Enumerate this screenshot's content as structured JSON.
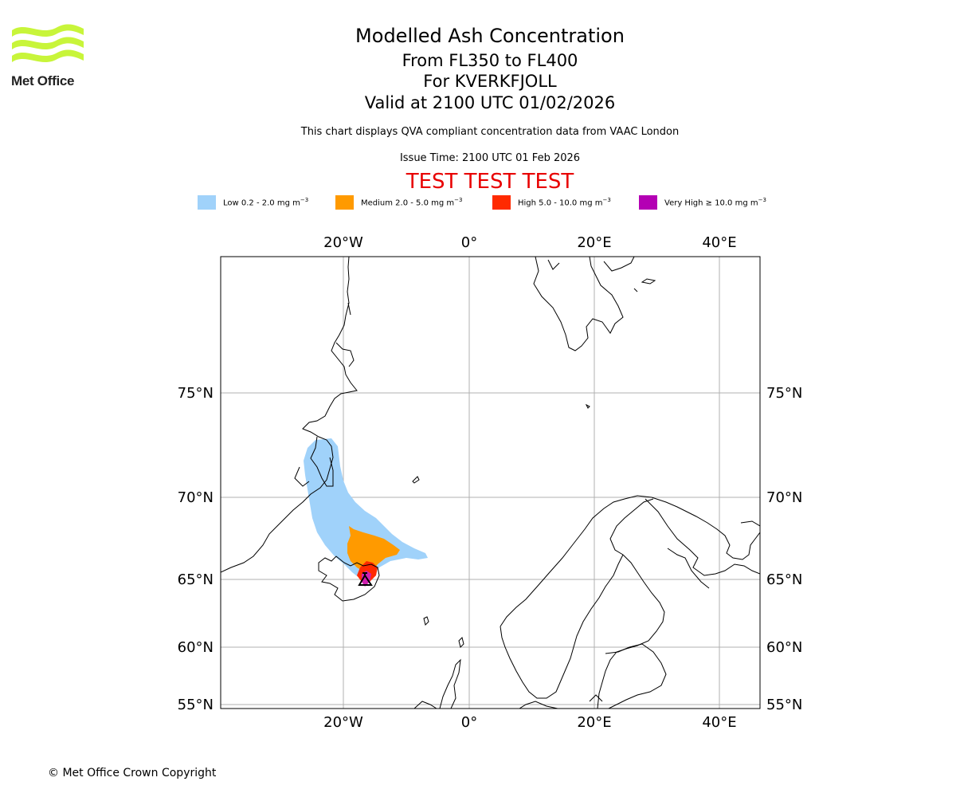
{
  "header": {
    "title": "Modelled Ash Concentration",
    "level_range": "From FL350 to FL400",
    "volcano": "For KVERKFJOLL",
    "valid_time": "Valid at 2100 UTC 01/02/2026",
    "description": "This chart displays QVA compliant concentration data from VAAC London",
    "issue_time": "Issue Time: 2100 UTC 01 Feb 2026",
    "test_banner": "TEST TEST TEST"
  },
  "logo": {
    "text": "Met Office",
    "color": "#c8f53a"
  },
  "legend": [
    {
      "label": "Low 0.2 - 2.0 mg m",
      "unit_exp": "−3",
      "color": "#a0d2fa"
    },
    {
      "label": "Medium 2.0 - 5.0 mg m",
      "unit_exp": "−3",
      "color": "#ff9a00"
    },
    {
      "label": "High 5.0 - 10.0 mg m",
      "unit_exp": "−3",
      "color": "#ff2a00"
    },
    {
      "label": "Very High  ≥  10.0 mg m",
      "unit_exp": "−3",
      "color": "#b400b4"
    }
  ],
  "map": {
    "lon_labels": [
      "20°W",
      "0°",
      "20°E",
      "40°E"
    ],
    "lat_labels": [
      "75°N",
      "70°N",
      "65°N",
      "60°N",
      "55°N"
    ]
  },
  "footer": {
    "copyright": "© Met Office Crown Copyright"
  }
}
